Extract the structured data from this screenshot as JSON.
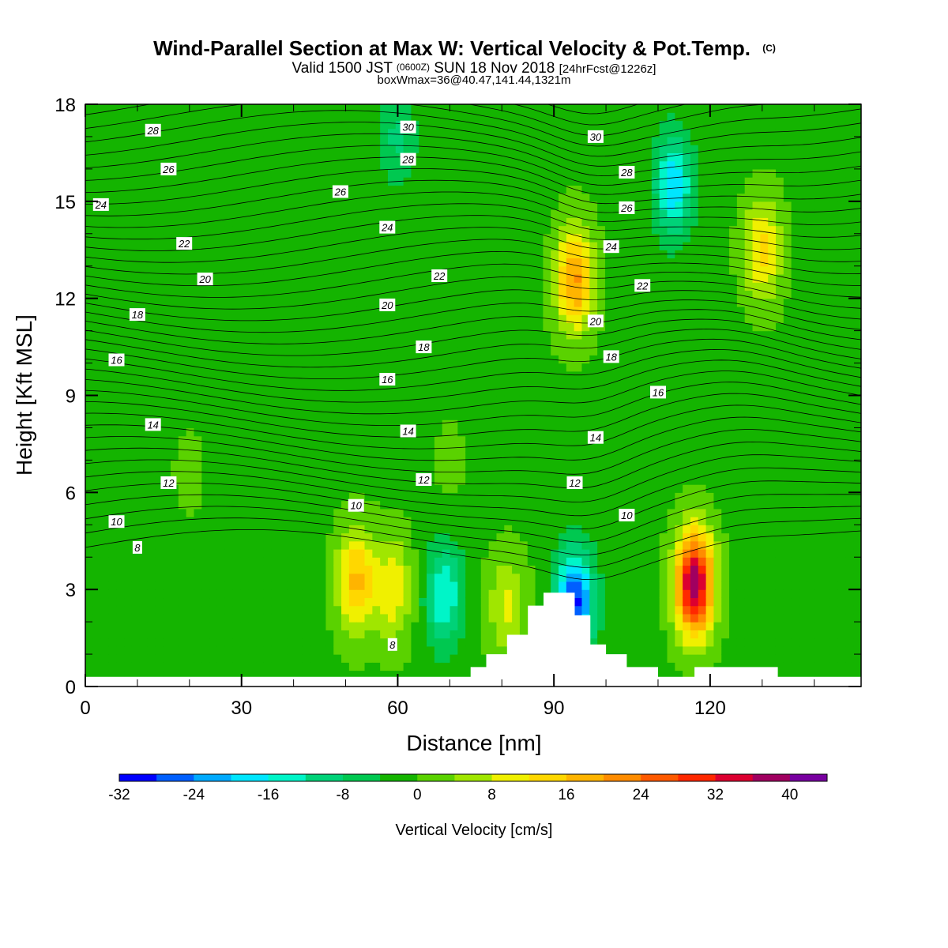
{
  "header": {
    "title_main": "Wind-Parallel Section at Max W: Vertical Velocity & Pot.Temp.",
    "title_copyright": "(C)",
    "valid_part1": "Valid 1500 JST",
    "valid_zulu": "(0600Z)",
    "valid_part2": "SUN 18 Nov 2018",
    "valid_fcst": "[24hrFcst@1226z]",
    "box_info": "boxWmax=36@40.47,141.44,1321m"
  },
  "chart_data": {
    "type": "heatmap",
    "xlabel": "Distance [nm]",
    "ylabel": "Height [Kft MSL]",
    "xlim": [
      0,
      149
    ],
    "ylim": [
      0,
      18
    ],
    "x_ticks": [
      "0",
      "30",
      "60",
      "90",
      "120"
    ],
    "y_ticks": [
      "0",
      "3",
      "6",
      "9",
      "12",
      "15",
      "18"
    ],
    "colorbar": {
      "label": "Vertical Velocity [cm/s]",
      "ticks": [
        "-32",
        "-24",
        "-16",
        "-8",
        "0",
        "8",
        "16",
        "24",
        "32",
        "40"
      ],
      "levels": [
        -32,
        -28,
        -24,
        -20,
        -16,
        -12,
        -8,
        -4,
        0,
        4,
        8,
        12,
        16,
        20,
        24,
        28,
        32,
        36,
        40,
        44
      ],
      "colors": [
        "#0000ff",
        "#005fff",
        "#00aaff",
        "#00e6ff",
        "#00f5c8",
        "#00d278",
        "#00c850",
        "#14b400",
        "#5ad200",
        "#a0e600",
        "#f0f000",
        "#ffd700",
        "#ffb400",
        "#ff8c00",
        "#ff5a00",
        "#ff2800",
        "#dc0030",
        "#a00060",
        "#7800a0"
      ]
    },
    "terrain_kft": [
      [
        0,
        0.3
      ],
      [
        74,
        0.3
      ],
      [
        74,
        0.6
      ],
      [
        77,
        0.6
      ],
      [
        77,
        1
      ],
      [
        81,
        1
      ],
      [
        81,
        1.6
      ],
      [
        85,
        1.6
      ],
      [
        85,
        2.5
      ],
      [
        88,
        2.5
      ],
      [
        88,
        2.9
      ],
      [
        94,
        2.9
      ],
      [
        94,
        2.2
      ],
      [
        97,
        2.2
      ],
      [
        97,
        1.3
      ],
      [
        100,
        1.3
      ],
      [
        100,
        1
      ],
      [
        104,
        1
      ],
      [
        104,
        0.6
      ],
      [
        110,
        0.6
      ],
      [
        110,
        0.3
      ],
      [
        117,
        0.3
      ],
      [
        117,
        0.6
      ],
      [
        133,
        0.6
      ],
      [
        133,
        0.3
      ],
      [
        149,
        0.3
      ]
    ],
    "w_features": [
      {
        "x": 52,
        "z": 3.3,
        "w": 18
      },
      {
        "x": 59,
        "z": 3.0,
        "w": 12
      },
      {
        "x": 69,
        "z": 2.8,
        "w": -15
      },
      {
        "x": 81,
        "z": 2.5,
        "w": 10
      },
      {
        "x": 94,
        "z": 2.6,
        "w": -28
      },
      {
        "x": 117,
        "z": 3.2,
        "w": 40
      },
      {
        "x": 94,
        "z": 12.6,
        "w": 22
      },
      {
        "x": 130,
        "z": 13.5,
        "w": 14
      },
      {
        "x": 113,
        "z": 15.5,
        "w": -18
      },
      {
        "x": 20,
        "z": 6.6,
        "w": 2
      },
      {
        "x": 70,
        "z": 6.9,
        "w": 2
      },
      {
        "x": 60,
        "z": 17,
        "w": -8
      }
    ],
    "theta_labels": [
      {
        "text": "8",
        "x": 10,
        "z": 4.3
      },
      {
        "text": "8",
        "x": 59,
        "z": 1.3
      },
      {
        "text": "10",
        "x": 6,
        "z": 5.1
      },
      {
        "text": "10",
        "x": 52,
        "z": 5.6
      },
      {
        "text": "10",
        "x": 104,
        "z": 5.3
      },
      {
        "text": "12",
        "x": 16,
        "z": 6.3
      },
      {
        "text": "12",
        "x": 65,
        "z": 6.4
      },
      {
        "text": "12",
        "x": 94,
        "z": 6.3
      },
      {
        "text": "14",
        "x": 13,
        "z": 8.1
      },
      {
        "text": "14",
        "x": 62,
        "z": 7.9
      },
      {
        "text": "14",
        "x": 98,
        "z": 7.7
      },
      {
        "text": "16",
        "x": 6,
        "z": 10.1
      },
      {
        "text": "16",
        "x": 58,
        "z": 9.5
      },
      {
        "text": "16",
        "x": 110,
        "z": 9.1
      },
      {
        "text": "18",
        "x": 10,
        "z": 11.5
      },
      {
        "text": "18",
        "x": 65,
        "z": 10.5
      },
      {
        "text": "18",
        "x": 101,
        "z": 10.2
      },
      {
        "text": "20",
        "x": 23,
        "z": 12.6
      },
      {
        "text": "20",
        "x": 58,
        "z": 11.8
      },
      {
        "text": "20",
        "x": 98,
        "z": 11.3
      },
      {
        "text": "22",
        "x": 19,
        "z": 13.7
      },
      {
        "text": "22",
        "x": 68,
        "z": 12.7
      },
      {
        "text": "22",
        "x": 107,
        "z": 12.4
      },
      {
        "text": "24",
        "x": 3,
        "z": 14.9
      },
      {
        "text": "24",
        "x": 58,
        "z": 14.2
      },
      {
        "text": "24",
        "x": 101,
        "z": 13.6
      },
      {
        "text": "26",
        "x": 16,
        "z": 16.0
      },
      {
        "text": "26",
        "x": 49,
        "z": 15.3
      },
      {
        "text": "26",
        "x": 104,
        "z": 14.8
      },
      {
        "text": "28",
        "x": 13,
        "z": 17.2
      },
      {
        "text": "28",
        "x": 62,
        "z": 16.3
      },
      {
        "text": "28",
        "x": 104,
        "z": 15.9
      },
      {
        "text": "30",
        "x": 62,
        "z": 17.3
      },
      {
        "text": "30",
        "x": 98,
        "z": 17.0
      }
    ]
  }
}
